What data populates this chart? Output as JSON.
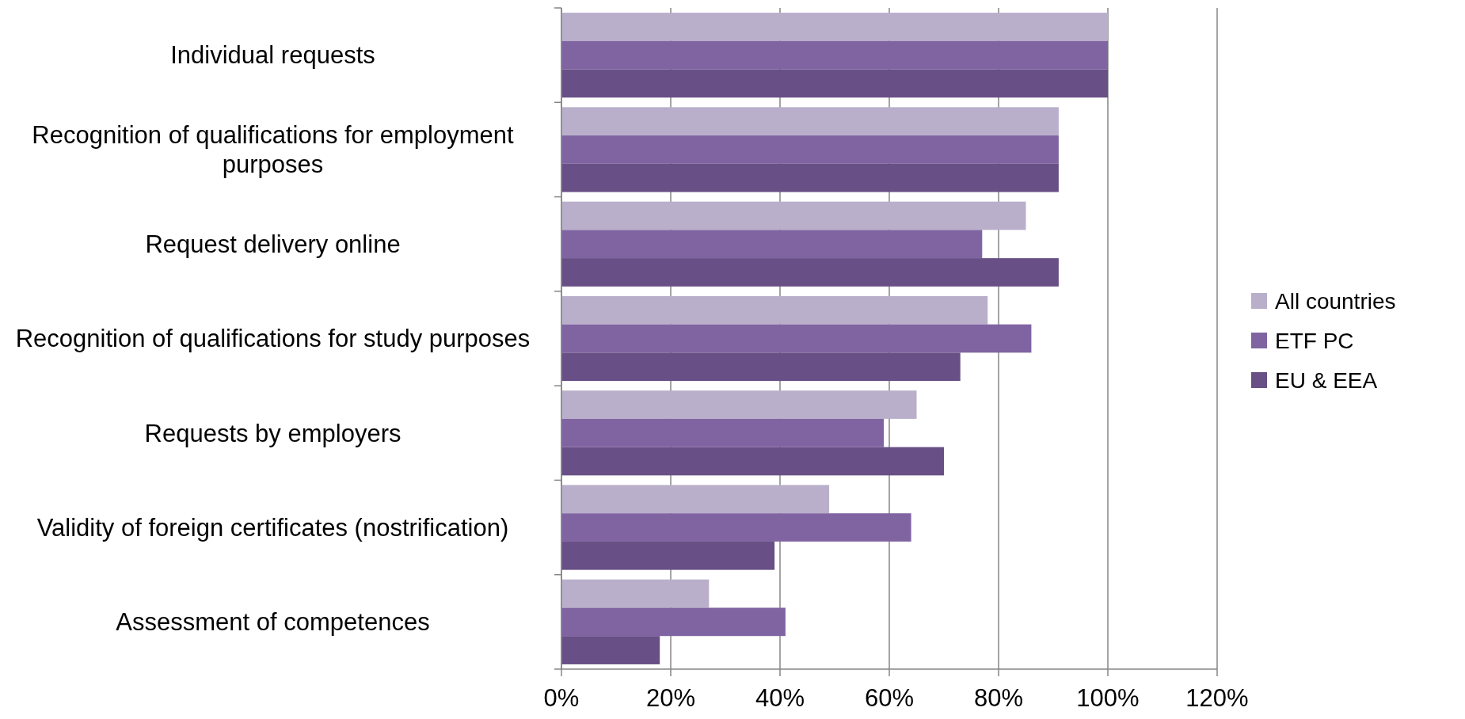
{
  "chart_data": {
    "type": "bar",
    "orientation": "horizontal",
    "categories": [
      "Individual requests",
      "Recognition of qualifications for employment purposes",
      "Request delivery online",
      "Recognition of qualifications for study purposes",
      "Requests by employers",
      "Validity of foreign certificates (nostrification)",
      "Assessment of competences"
    ],
    "series": [
      {
        "name": "All countries",
        "color": "#b9afca",
        "values": [
          100,
          91,
          85,
          78,
          65,
          49,
          27
        ]
      },
      {
        "name": "ETF PC",
        "color": "#8064a2",
        "values": [
          100,
          91,
          77,
          86,
          59,
          64,
          41
        ]
      },
      {
        "name": "EU & EEA",
        "color": "#684f86",
        "values": [
          100,
          91,
          91,
          73,
          70,
          39,
          18
        ]
      }
    ],
    "xlim": [
      0,
      120
    ],
    "xticks": [
      {
        "value": 0,
        "label": "0%"
      },
      {
        "value": 20,
        "label": "20%"
      },
      {
        "value": 40,
        "label": "40%"
      },
      {
        "value": 60,
        "label": "60%"
      },
      {
        "value": 80,
        "label": "80%"
      },
      {
        "value": 100,
        "label": "100%"
      },
      {
        "value": 120,
        "label": "120%"
      }
    ],
    "grid": "x",
    "legend": "right"
  }
}
